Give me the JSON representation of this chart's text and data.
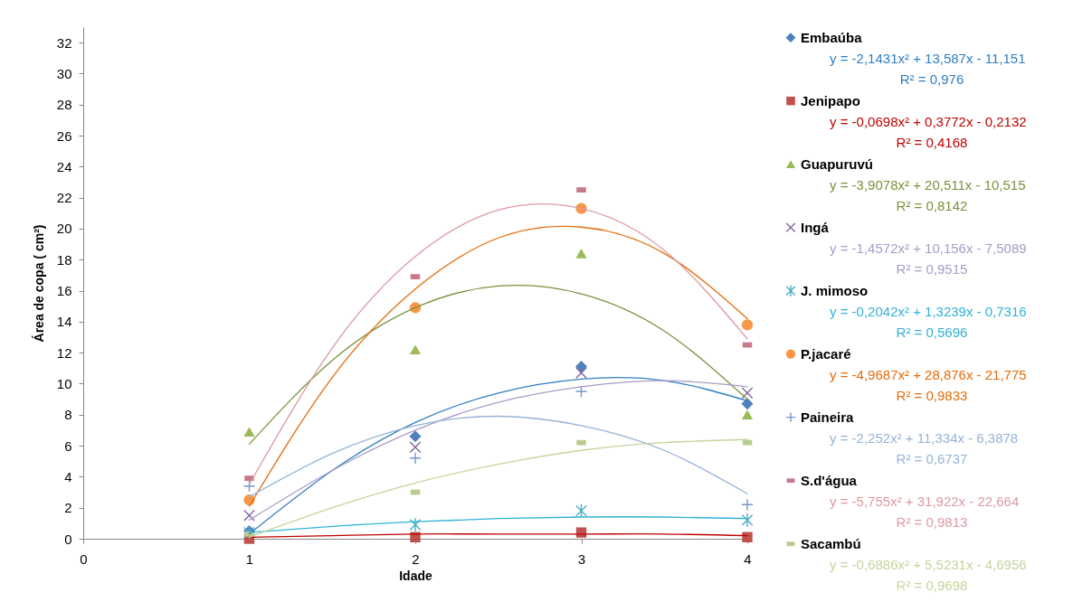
{
  "chart_data": {
    "type": "scatter",
    "xlabel": "Idade",
    "ylabel": "Área de copa ( cm²)",
    "xlim": [
      0,
      4
    ],
    "ylim": [
      0,
      33
    ],
    "xticks": [
      0,
      1,
      2,
      3,
      4
    ],
    "yticks": [
      0,
      2,
      4,
      6,
      8,
      10,
      12,
      14,
      16,
      18,
      20,
      22,
      24,
      26,
      28,
      30,
      32
    ],
    "legend": "right",
    "x": [
      1,
      2,
      3,
      4
    ],
    "series": [
      {
        "name": "Embaúba",
        "marker": "diamond",
        "color": "#4f81bd",
        "values": [
          0.5,
          6.6,
          11.1,
          8.7
        ]
      },
      {
        "name": "y = -2,1431x² + 13,587x - 11,151",
        "type": "line",
        "color": "#2f7fc1",
        "x": [
          1,
          1.5,
          2,
          2.5,
          3,
          3.5,
          4
        ],
        "values": [
          0.3,
          4.4,
          7.5,
          9.4,
          10.3,
          10.2,
          8.9
        ]
      },
      {
        "name": "Jenipapo",
        "marker": "square",
        "color": "#c0504d",
        "values": [
          0.0,
          0.1,
          0.4,
          0.1
        ]
      },
      {
        "name": "y = -0,0698x² + 0,3772x - 0,2132",
        "type": "line",
        "color": "#c00000",
        "x": [
          1,
          1.5,
          2,
          2.5,
          3,
          3.5,
          4
        ],
        "values": [
          0.1,
          0.2,
          0.3,
          0.3,
          0.3,
          0.3,
          0.2
        ]
      },
      {
        "name": "Guapuruvú",
        "marker": "triangle",
        "color": "#9bbb59",
        "values": [
          6.9,
          12.2,
          18.4,
          8.0
        ]
      },
      {
        "name": "y = -3,9078x² + 20,511x - 10,515",
        "type": "line",
        "color": "#77933c",
        "x": [
          1,
          1.5,
          2,
          2.5,
          3,
          3.5,
          4
        ],
        "values": [
          6.1,
          11.5,
          14.9,
          16.3,
          15.8,
          13.4,
          9.0
        ]
      },
      {
        "name": "Ingá",
        "marker": "x",
        "color": "#8064a2",
        "values": [
          1.5,
          5.9,
          10.7,
          9.4
        ]
      },
      {
        "name": "y = -1,4572x² + 10,156x - 7,5089",
        "type": "line",
        "color": "#a99bc8",
        "x": [
          1,
          1.5,
          2,
          2.5,
          3,
          3.5,
          4
        ],
        "values": [
          1.2,
          4.4,
          7.0,
          8.8,
          9.8,
          10.2,
          9.8
        ]
      },
      {
        "name": "J. mimoso",
        "marker": "cross",
        "color": "#4bacc6",
        "values": [
          0.4,
          0.9,
          1.8,
          1.2
        ]
      },
      {
        "name": "y = -0,2042x² + 1,3239x - 0,7316",
        "type": "line",
        "color": "#31b2d6",
        "x": [
          1,
          1.5,
          2,
          2.5,
          3,
          3.5,
          4
        ],
        "values": [
          0.4,
          0.8,
          1.1,
          1.3,
          1.4,
          1.4,
          1.3
        ]
      },
      {
        "name": "P.jacaré",
        "marker": "circle",
        "color": "#f79646",
        "values": [
          2.5,
          14.9,
          21.3,
          13.8
        ]
      },
      {
        "name": "y = -4,9687x² + 28,876x - 21,775",
        "type": "line",
        "color": "#e46c0a",
        "x": [
          1,
          1.5,
          2,
          2.5,
          3,
          3.5,
          4
        ],
        "values": [
          2.1,
          10.4,
          16.1,
          19.4,
          20.1,
          18.4,
          14.2
        ]
      },
      {
        "name": "Paineira",
        "marker": "plus",
        "color": "#7698c8",
        "values": [
          3.4,
          5.2,
          9.5,
          2.2
        ]
      },
      {
        "name": "y = -2,252x² + 11,334x - 6,3878",
        "type": "line",
        "color": "#95b3d7",
        "x": [
          1,
          1.5,
          2,
          2.5,
          3,
          3.5,
          4
        ],
        "values": [
          2.7,
          5.5,
          7.3,
          7.9,
          7.3,
          5.7,
          2.9
        ]
      },
      {
        "name": "S.d'água",
        "color": "#c9788a",
        "values": [
          3.9,
          16.9,
          22.5,
          12.5
        ]
      },
      {
        "name": "y = -5,755x² + 31,922x - 22,664",
        "type": "line",
        "color": "#dd9aa0",
        "x": [
          1,
          1.5,
          2,
          2.5,
          3,
          3.5,
          4
        ],
        "values": [
          3.5,
          12.3,
          18.2,
          21.2,
          21.3,
          18.6,
          12.9
        ]
      },
      {
        "name": "Sacambú",
        "color": "#b8cc8f",
        "values": [
          0.3,
          3.0,
          6.2,
          6.2
        ]
      },
      {
        "name": "y = -0,6886x² + 5,5231x - 4,6956",
        "type": "line",
        "color": "#c3d69b",
        "x": [
          1,
          1.5,
          2,
          2.5,
          3,
          3.5,
          4
        ],
        "values": [
          0.1,
          2.0,
          3.6,
          4.8,
          5.7,
          6.2,
          6.4
        ]
      }
    ],
    "annotations": [
      "R² = 0,976",
      "R² = 0,4168",
      "R² = 0,8142",
      "R² = 0,9515",
      "R² = 0,5696",
      "R² = 0,9833",
      "R² = 0,6737",
      "R² = 0,9813",
      "R² = 0,9698"
    ]
  }
}
